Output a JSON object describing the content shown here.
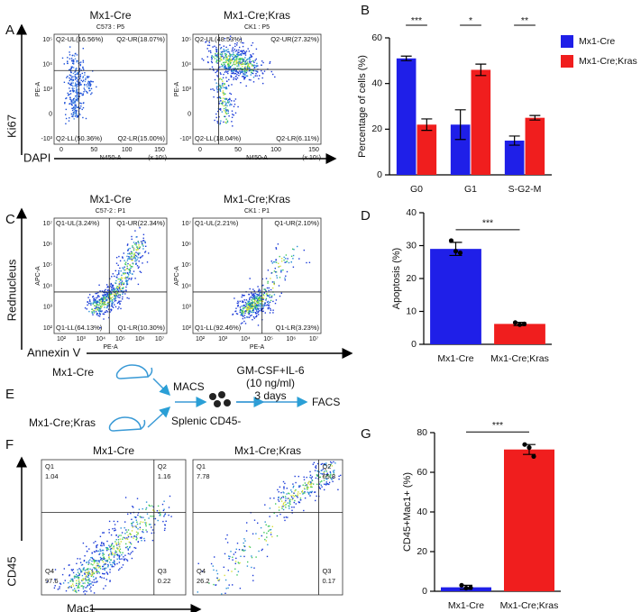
{
  "panel_labels": [
    "A",
    "B",
    "C",
    "D",
    "E",
    "F",
    "G"
  ],
  "flow_a": {
    "y_axis_title": "Ki67",
    "x_axis_title": "DAPI",
    "plots": [
      {
        "title": "Mx1-Cre",
        "gate": "C573 : P5",
        "x_label": "N450-A",
        "y_label": "PE-A",
        "x_unit": "(x 10⁵)",
        "quadrants": [
          "Q2-UL(16.56%)",
          "Q2-UR(18.07%)",
          "Q2-LL(50.36%)",
          "Q2-LR(15.00%)"
        ],
        "xticks": [
          "0",
          "50",
          "100",
          "150"
        ],
        "yticks": [
          "10⁵",
          "10⁴",
          "10³",
          "0",
          "-10³"
        ]
      },
      {
        "title": "Mx1-Cre;Kras",
        "gate": "CK1 : P5",
        "x_label": "N450-A",
        "y_label": "PE-A",
        "x_unit": "(x 10⁵)",
        "quadrants": [
          "Q2-UL(48.53%)",
          "Q2-UR(27.32%)",
          "Q2-LL(18.04%)",
          "Q2-LR(6.11%)"
        ],
        "xticks": [
          "0",
          "50",
          "100",
          "150"
        ],
        "yticks": [
          "10⁵",
          "10⁴",
          "10³",
          "0",
          "-10³"
        ]
      }
    ]
  },
  "flow_c": {
    "y_axis_title": "Rednucleus",
    "x_axis_title": "Annexin V",
    "plots": [
      {
        "title": "Mx1-Cre",
        "gate": "C57-2 : P1",
        "x_label": "PE-A",
        "y_label": "APC-A",
        "quadrants": [
          "Q1-UL(3.24%)",
          "Q1-UR(22.34%)",
          "Q1-LL(64.13%)",
          "Q1-LR(10.30%)"
        ],
        "xticks": [
          "10²",
          "10³",
          "10⁴",
          "10⁵",
          "10⁶",
          "10⁷"
        ],
        "yticks": [
          "10⁷",
          "10⁶",
          "10⁵",
          "10⁴",
          "10³",
          "10²"
        ]
      },
      {
        "title": "Mx1-Cre;Kras",
        "gate": "CK1 : P1",
        "x_label": "PE-A",
        "y_label": "APC-A",
        "quadrants": [
          "Q1-UL(2.21%)",
          "Q1-UR(2.10%)",
          "Q1-LL(92.46%)",
          "Q1-LR(3.23%)"
        ],
        "xticks": [
          "10²",
          "10³",
          "10⁴",
          "10⁵",
          "10⁶",
          "10⁷"
        ],
        "yticks": [
          "10⁷",
          "10⁶",
          "10⁵",
          "10⁴",
          "10³",
          "10²"
        ]
      }
    ]
  },
  "flow_f": {
    "y_axis_title": "CD45",
    "x_axis_title": "Mac1",
    "plots": [
      {
        "title": "Mx1-Cre",
        "quadrants": [
          {
            "name": "Q1",
            "value": 1.04
          },
          {
            "name": "Q2",
            "value": 1.16
          },
          {
            "name": "Q4",
            "value": 97.6
          },
          {
            "name": "Q3",
            "value": 0.22
          }
        ]
      },
      {
        "title": "Mx1-Cre;Kras",
        "quadrants": [
          {
            "name": "Q1",
            "value": 7.78
          },
          {
            "name": "Q2",
            "value": 65.8
          },
          {
            "name": "Q4",
            "value": 26.2
          },
          {
            "name": "Q3",
            "value": 0.17
          }
        ]
      }
    ]
  },
  "schematic": {
    "mouse_1": "Mx1-Cre",
    "mouse_2": "Mx1-Cre;Kras",
    "step_1": "MACS",
    "cells": "Splenic CD45-",
    "treatment": "GM-CSF+IL-6",
    "dose": "(10 ng/ml)",
    "duration": "3 days",
    "readout": "FACS"
  },
  "chart_data": [
    {
      "type": "grouped_bar",
      "y_label": "Percentage of cells (%)",
      "categories": [
        "G0",
        "G1",
        "S-G2-M"
      ],
      "series": [
        {
          "name": "Mx1-Cre",
          "color": "#1f1fe8",
          "values": [
            51,
            22,
            15
          ],
          "errors": [
            1,
            6.5,
            2
          ]
        },
        {
          "name": "Mx1-Cre;Kras",
          "color": "#f01e1e",
          "values": [
            22,
            46,
            25
          ],
          "errors": [
            2.5,
            2.5,
            1
          ]
        }
      ],
      "significance": [
        "***",
        "*",
        "**"
      ],
      "ylim": [
        0,
        60
      ],
      "yticks": [
        0,
        20,
        40,
        60
      ],
      "legend": "right"
    },
    {
      "type": "bar",
      "y_label": "Apoptosis (%)",
      "categories": [
        "Mx1-Cre",
        "Mx1-Cre;Kras"
      ],
      "values": [
        29,
        6.2
      ],
      "errors": [
        2,
        0.5
      ],
      "colors": [
        "#1f1fe8",
        "#f01e1e"
      ],
      "points": [
        [
          31.5,
          28.3,
          27.8
        ],
        [
          6.6,
          6.0,
          6.2
        ]
      ],
      "significance": "***",
      "ylim": [
        0,
        40
      ],
      "yticks": [
        0,
        10,
        20,
        30,
        40
      ]
    },
    {
      "type": "bar",
      "y_label": "CD45+Mac1+ (%)",
      "categories": [
        "Mx1-Cre",
        "Mx1-Cre;Kras"
      ],
      "values": [
        2,
        71.5
      ],
      "errors": [
        1,
        2.5
      ],
      "colors": [
        "#1f1fe8",
        "#f01e1e"
      ],
      "points": [
        [
          3,
          1.6,
          1.8
        ],
        [
          74,
          72.5,
          68
        ]
      ],
      "significance": "***",
      "ylim": [
        0,
        80
      ],
      "yticks": [
        0,
        20,
        40,
        60,
        80
      ]
    }
  ]
}
